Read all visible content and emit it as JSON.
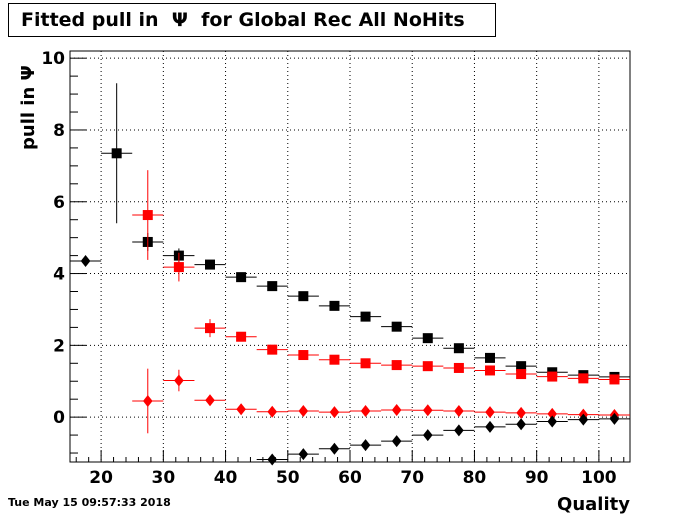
{
  "title": "Fitted pull in  Ψ  for Global Rec All NoHits",
  "timestamp": "Tue May 15 09:57:33 2018",
  "chart_data": {
    "type": "scatter",
    "title": "Fitted pull in  Ψ  for Global Rec All NoHits",
    "xlabel": "Quality",
    "ylabel": "pull in  Ψ",
    "xlim": [
      15,
      105
    ],
    "ylim": [
      -1.25,
      10.2
    ],
    "x_ticks": [
      20,
      30,
      40,
      50,
      60,
      70,
      80,
      90,
      100
    ],
    "x_tick_labels": [
      "20",
      "30",
      "40",
      "50",
      "60",
      "70",
      "80",
      "90",
      "100"
    ],
    "y_ticks": [
      0,
      2,
      4,
      6,
      8,
      10
    ],
    "y_tick_labels": [
      "0",
      "2",
      "4",
      "6",
      "8",
      "10"
    ],
    "grid": true,
    "bin_half_width": 2.5,
    "series": [
      {
        "marker": "square",
        "color": "#000000",
        "points": [
          {
            "x": 22.5,
            "y": 7.35,
            "err": 1.95
          },
          {
            "x": 27.5,
            "y": 4.88,
            "err": 0.25
          },
          {
            "x": 32.5,
            "y": 4.5,
            "err": 0.2
          },
          {
            "x": 37.5,
            "y": 4.25,
            "err": 0.1
          },
          {
            "x": 42.5,
            "y": 3.9,
            "err": 0.08
          },
          {
            "x": 47.5,
            "y": 3.65,
            "err": 0.06
          },
          {
            "x": 52.5,
            "y": 3.37,
            "err": 0.05
          },
          {
            "x": 57.5,
            "y": 3.1,
            "err": 0.04
          },
          {
            "x": 62.5,
            "y": 2.8,
            "err": 0.04
          },
          {
            "x": 67.5,
            "y": 2.52,
            "err": 0.03
          },
          {
            "x": 72.5,
            "y": 2.2,
            "err": 0.03
          },
          {
            "x": 77.5,
            "y": 1.92,
            "err": 0.03
          },
          {
            "x": 82.5,
            "y": 1.65,
            "err": 0.03
          },
          {
            "x": 87.5,
            "y": 1.42,
            "err": 0.02
          },
          {
            "x": 92.5,
            "y": 1.25,
            "err": 0.02
          },
          {
            "x": 97.5,
            "y": 1.17,
            "err": 0.02
          },
          {
            "x": 102.5,
            "y": 1.12,
            "err": 0.02
          }
        ]
      },
      {
        "marker": "square",
        "color": "#ff0000",
        "points": [
          {
            "x": 27.5,
            "y": 5.63,
            "err": 1.25
          },
          {
            "x": 32.5,
            "y": 4.18,
            "err": 0.4
          },
          {
            "x": 37.5,
            "y": 2.48,
            "err": 0.25
          },
          {
            "x": 42.5,
            "y": 2.24,
            "err": 0.1
          },
          {
            "x": 47.5,
            "y": 1.88,
            "err": 0.08
          },
          {
            "x": 52.5,
            "y": 1.73,
            "err": 0.06
          },
          {
            "x": 57.5,
            "y": 1.6,
            "err": 0.05
          },
          {
            "x": 62.5,
            "y": 1.5,
            "err": 0.04
          },
          {
            "x": 67.5,
            "y": 1.45,
            "err": 0.04
          },
          {
            "x": 72.5,
            "y": 1.42,
            "err": 0.03
          },
          {
            "x": 77.5,
            "y": 1.37,
            "err": 0.03
          },
          {
            "x": 82.5,
            "y": 1.3,
            "err": 0.03
          },
          {
            "x": 87.5,
            "y": 1.2,
            "err": 0.03
          },
          {
            "x": 92.5,
            "y": 1.13,
            "err": 0.02
          },
          {
            "x": 97.5,
            "y": 1.08,
            "err": 0.02
          },
          {
            "x": 102.5,
            "y": 1.05,
            "err": 0.02
          }
        ]
      },
      {
        "marker": "diamond",
        "color": "#ff0000",
        "points": [
          {
            "x": 27.5,
            "y": 0.45,
            "err": 0.9
          },
          {
            "x": 32.5,
            "y": 1.02,
            "err": 0.3
          },
          {
            "x": 37.5,
            "y": 0.47,
            "err": 0.15
          },
          {
            "x": 42.5,
            "y": 0.22,
            "err": 0.06
          },
          {
            "x": 47.5,
            "y": 0.15,
            "err": 0.04
          },
          {
            "x": 52.5,
            "y": 0.17,
            "err": 0.03
          },
          {
            "x": 57.5,
            "y": 0.14,
            "err": 0.03
          },
          {
            "x": 62.5,
            "y": 0.17,
            "err": 0.03
          },
          {
            "x": 67.5,
            "y": 0.2,
            "err": 0.02
          },
          {
            "x": 72.5,
            "y": 0.19,
            "err": 0.02
          },
          {
            "x": 77.5,
            "y": 0.17,
            "err": 0.02
          },
          {
            "x": 82.5,
            "y": 0.14,
            "err": 0.02
          },
          {
            "x": 87.5,
            "y": 0.12,
            "err": 0.02
          },
          {
            "x": 92.5,
            "y": 0.09,
            "err": 0.02
          },
          {
            "x": 97.5,
            "y": 0.07,
            "err": 0.02
          },
          {
            "x": 102.5,
            "y": 0.06,
            "err": 0.02
          }
        ]
      },
      {
        "marker": "diamond",
        "color": "#000000",
        "points": [
          {
            "x": 17.5,
            "y": 4.35,
            "err": 0
          },
          {
            "x": 47.5,
            "y": -1.18,
            "err": 0.05
          },
          {
            "x": 52.5,
            "y": -1.03,
            "err": 0.04
          },
          {
            "x": 57.5,
            "y": -0.88,
            "err": 0.04
          },
          {
            "x": 62.5,
            "y": -0.78,
            "err": 0.03
          },
          {
            "x": 67.5,
            "y": -0.67,
            "err": 0.03
          },
          {
            "x": 72.5,
            "y": -0.5,
            "err": 0.02
          },
          {
            "x": 77.5,
            "y": -0.37,
            "err": 0.02
          },
          {
            "x": 82.5,
            "y": -0.27,
            "err": 0.02
          },
          {
            "x": 87.5,
            "y": -0.2,
            "err": 0.02
          },
          {
            "x": 92.5,
            "y": -0.12,
            "err": 0.02
          },
          {
            "x": 97.5,
            "y": -0.07,
            "err": 0.02
          },
          {
            "x": 102.5,
            "y": -0.05,
            "err": 0.02
          }
        ]
      }
    ]
  }
}
